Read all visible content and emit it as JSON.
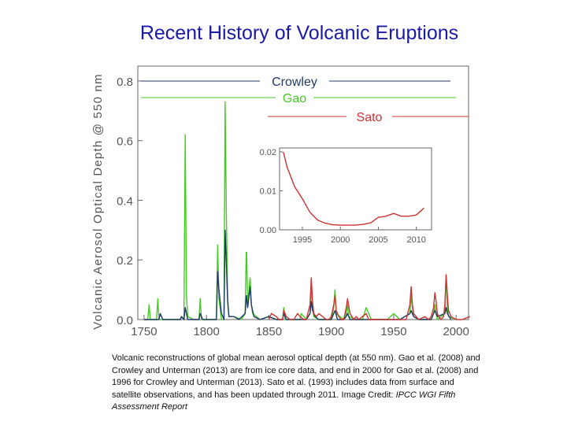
{
  "slide": {
    "title": "Recent History of Volcanic Eruptions",
    "caption": "Volcanic reconstructions of global mean aerosol optical depth (at 550 nm). Gao et al. (2008) and Crowley and Unterman (2013) are from ice core data, and end in 2000 for Gao et al. (2008) and 1996 for Crowley and Unterman (2013). Sato et al. (1993) includes data from surface and satellite observations, and has been updated through 2011.  Image Credit: ",
    "caption_source": "IPCC WGI Fifth Assessment Report"
  },
  "colors": {
    "title": "#1a1aa6",
    "crowley": "#1f3a66",
    "gao": "#44cc22",
    "sato": "#cc3333",
    "axis_text": "#555555"
  },
  "chart_data": [
    {
      "type": "line",
      "title": "",
      "xlabel": "",
      "ylabel": "Volcanic Aerosol Optical Depth @ 550 nm",
      "xlim": [
        1745,
        2010
      ],
      "ylim": [
        0,
        0.85
      ],
      "xticks": [
        1750,
        1800,
        1850,
        1900,
        1950,
        2000
      ],
      "yticks": [
        0.0,
        0.2,
        0.4,
        0.6,
        0.8
      ],
      "ytick_labels": [
        "0.0",
        "0.2",
        "0.4",
        "0.6",
        "0.8"
      ],
      "legend": {
        "placement": "top",
        "style": "labels on lines"
      },
      "series": [
        {
          "name": "Crowley",
          "color": "#1f3a66",
          "x": [
            1750,
            1762,
            1763,
            1765,
            1772,
            1779,
            1780,
            1782,
            1783,
            1785,
            1790,
            1794,
            1795,
            1797,
            1800,
            1805,
            1808,
            1809,
            1810,
            1812,
            1814,
            1815,
            1816,
            1817,
            1818,
            1822,
            1826,
            1831,
            1832,
            1833,
            1835,
            1836,
            1838,
            1843,
            1850,
            1856,
            1861,
            1862,
            1864,
            1870,
            1875,
            1880,
            1883,
            1884,
            1885,
            1887,
            1890,
            1895,
            1900,
            1902,
            1903,
            1905,
            1910,
            1912,
            1913,
            1915,
            1920,
            1925,
            1932,
            1935,
            1945,
            1955,
            1963,
            1964,
            1966,
            1970,
            1975,
            1980,
            1982,
            1983,
            1985,
            1991,
            1992,
            1993,
            1996
          ],
          "y": [
            0.0,
            0.0,
            0.02,
            0.0,
            0.0,
            0.0,
            0.01,
            0.0,
            0.04,
            0.0,
            0.0,
            0.0,
            0.02,
            0.0,
            0.0,
            0.0,
            0.0,
            0.16,
            0.1,
            0.02,
            0.0,
            0.3,
            0.18,
            0.06,
            0.01,
            0.01,
            0.0,
            0.02,
            0.08,
            0.04,
            0.11,
            0.05,
            0.01,
            0.0,
            0.01,
            0.0,
            0.0,
            0.02,
            0.0,
            0.0,
            0.0,
            0.0,
            0.02,
            0.06,
            0.03,
            0.01,
            0.0,
            0.0,
            0.0,
            0.02,
            0.03,
            0.0,
            0.0,
            0.01,
            0.02,
            0.0,
            0.0,
            0.0,
            0.0,
            0.0,
            0.0,
            0.0,
            0.02,
            0.03,
            0.01,
            0.0,
            0.0,
            0.0,
            0.02,
            0.03,
            0.01,
            0.02,
            0.04,
            0.02,
            0.0
          ]
        },
        {
          "name": "Gao",
          "color": "#44cc22",
          "x": [
            1750,
            1753,
            1754,
            1755,
            1758,
            1760,
            1761,
            1762,
            1765,
            1772,
            1779,
            1780,
            1782,
            1783,
            1784,
            1785,
            1790,
            1794,
            1795,
            1796,
            1799,
            1800,
            1805,
            1808,
            1809,
            1810,
            1812,
            1814,
            1815,
            1816,
            1817,
            1818,
            1822,
            1828,
            1831,
            1832,
            1833,
            1835,
            1836,
            1837,
            1843,
            1850,
            1856,
            1861,
            1862,
            1863,
            1870,
            1875,
            1876,
            1880,
            1883,
            1884,
            1885,
            1886,
            1890,
            1895,
            1900,
            1902,
            1903,
            1904,
            1910,
            1912,
            1913,
            1914,
            1920,
            1925,
            1928,
            1932,
            1935,
            1945,
            1950,
            1955,
            1963,
            1964,
            1965,
            1966,
            1970,
            1975,
            1980,
            1982,
            1983,
            1984,
            1985,
            1991,
            1992,
            1993,
            1994,
            2000
          ],
          "y": [
            0.0,
            0.0,
            0.05,
            0.0,
            0.0,
            0.0,
            0.07,
            0.0,
            0.0,
            0.0,
            0.0,
            0.01,
            0.0,
            0.62,
            0.08,
            0.01,
            0.0,
            0.0,
            0.07,
            0.0,
            0.0,
            0.0,
            0.0,
            0.0,
            0.25,
            0.07,
            0.0,
            0.0,
            0.73,
            0.34,
            0.07,
            0.01,
            0.01,
            0.0,
            0.02,
            0.26,
            0.05,
            0.14,
            0.05,
            0.02,
            0.0,
            0.01,
            0.0,
            0.0,
            0.04,
            0.0,
            0.0,
            0.0,
            0.02,
            0.0,
            0.02,
            0.11,
            0.04,
            0.01,
            0.0,
            0.0,
            0.0,
            0.04,
            0.1,
            0.02,
            0.0,
            0.02,
            0.05,
            0.01,
            0.0,
            0.0,
            0.04,
            0.0,
            0.0,
            0.0,
            0.02,
            0.0,
            0.02,
            0.08,
            0.04,
            0.01,
            0.0,
            0.0,
            0.0,
            0.02,
            0.05,
            0.02,
            0.0,
            0.02,
            0.15,
            0.04,
            0.01,
            0.0
          ]
        },
        {
          "name": "Sato",
          "color": "#cc3333",
          "x": [
            1850,
            1852,
            1856,
            1858,
            1861,
            1862,
            1864,
            1867,
            1870,
            1873,
            1875,
            1878,
            1880,
            1883,
            1884,
            1885,
            1886,
            1888,
            1890,
            1893,
            1896,
            1898,
            1900,
            1902,
            1903,
            1904,
            1906,
            1908,
            1910,
            1912,
            1913,
            1915,
            1918,
            1920,
            1922,
            1925,
            1928,
            1930,
            1932,
            1935,
            1940,
            1945,
            1950,
            1955,
            1960,
            1963,
            1964,
            1965,
            1966,
            1968,
            1970,
            1975,
            1978,
            1980,
            1982,
            1983,
            1984,
            1985,
            1986,
            1988,
            1990,
            1991,
            1992,
            1993,
            1994,
            1996,
            2000,
            2005,
            2011
          ],
          "y": [
            0.0,
            0.02,
            0.01,
            0.0,
            0.0,
            0.03,
            0.01,
            0.0,
            0.0,
            0.02,
            0.01,
            0.0,
            0.0,
            0.05,
            0.14,
            0.06,
            0.02,
            0.01,
            0.02,
            0.01,
            0.0,
            0.0,
            0.01,
            0.05,
            0.08,
            0.03,
            0.01,
            0.0,
            0.0,
            0.04,
            0.07,
            0.02,
            0.0,
            0.01,
            0.0,
            0.01,
            0.02,
            0.0,
            0.0,
            0.0,
            0.0,
            0.0,
            0.0,
            0.0,
            0.0,
            0.05,
            0.11,
            0.05,
            0.02,
            0.01,
            0.0,
            0.01,
            0.0,
            0.01,
            0.04,
            0.09,
            0.06,
            0.02,
            0.01,
            0.0,
            0.01,
            0.05,
            0.15,
            0.08,
            0.03,
            0.01,
            0.0,
            0.0,
            0.01
          ]
        }
      ]
    },
    {
      "type": "line",
      "title": "",
      "xlabel": "",
      "ylabel": "",
      "xlim": [
        1992,
        2012
      ],
      "ylim": [
        0,
        0.021
      ],
      "xticks": [
        1995,
        2000,
        2005,
        2010
      ],
      "yticks": [
        0.0,
        0.01,
        0.02
      ],
      "ytick_labels": [
        "0.00",
        "0.01",
        "0.02"
      ],
      "series": [
        {
          "name": "",
          "color": "#cc3333",
          "x": [
            1992.5,
            1993,
            1994,
            1995,
            1996,
            1997,
            1998,
            1999,
            2000,
            2001,
            2002,
            2003,
            2004,
            2005,
            2006,
            2007,
            2008,
            2009,
            2010,
            2011
          ],
          "y": [
            0.02,
            0.016,
            0.011,
            0.008,
            0.0045,
            0.0025,
            0.0017,
            0.0013,
            0.0012,
            0.0012,
            0.0012,
            0.0014,
            0.0018,
            0.0032,
            0.0035,
            0.0042,
            0.0035,
            0.0035,
            0.0038,
            0.0056
          ]
        }
      ]
    }
  ]
}
